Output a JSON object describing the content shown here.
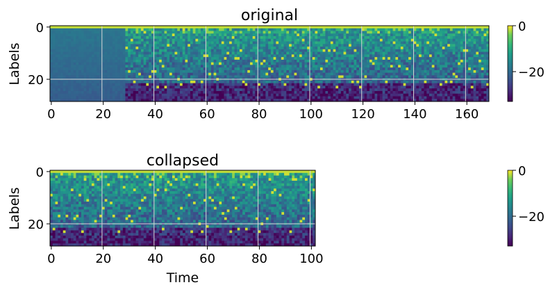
{
  "chart_data": [
    {
      "type": "heatmap",
      "title": "original",
      "ylabel": "Labels",
      "xlabel": "",
      "x_range": [
        0,
        169
      ],
      "y_range": [
        0,
        29
      ],
      "x_ticks": [
        0,
        20,
        40,
        60,
        80,
        100,
        120,
        140,
        160
      ],
      "y_ticks": [
        0,
        20
      ],
      "n_time": 169,
      "n_labels": 29,
      "active_from": 29,
      "grid": true,
      "colormap": "viridis",
      "colorbar": {
        "ticks": [
          0,
          -20
        ],
        "range": [
          -33,
          0
        ]
      }
    },
    {
      "type": "heatmap",
      "title": "collapsed",
      "ylabel": "Labels",
      "xlabel": "Time",
      "x_range": [
        0,
        102
      ],
      "y_range": [
        0,
        29
      ],
      "x_ticks": [
        0,
        20,
        40,
        60,
        80,
        100
      ],
      "y_ticks": [
        0,
        20
      ],
      "n_time": 102,
      "n_labels": 29,
      "active_from": 0,
      "grid": true,
      "colormap": "viridis",
      "colorbar": {
        "ticks": [
          0,
          -20
        ],
        "range": [
          -33,
          0
        ]
      }
    }
  ]
}
